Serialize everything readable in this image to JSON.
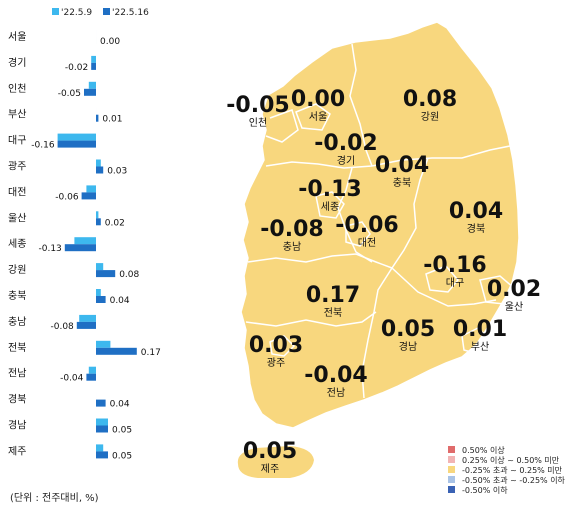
{
  "legend": {
    "series": [
      {
        "label": "'22.5.9",
        "color": "#3db8ee"
      },
      {
        "label": "'22.5.16",
        "color": "#1f6fc4"
      }
    ]
  },
  "unit_label": "(단위 : 전주대비, %)",
  "chart_data": {
    "type": "bar",
    "orientation": "horizontal",
    "categories": [
      "서울",
      "경기",
      "인천",
      "부산",
      "대구",
      "광주",
      "대전",
      "울산",
      "세종",
      "강원",
      "충북",
      "충남",
      "전북",
      "전남",
      "경북",
      "경남",
      "제주"
    ],
    "series": [
      {
        "name": "'22.5.9",
        "values": [
          0.0,
          -0.02,
          -0.03,
          0.0,
          -0.16,
          0.02,
          -0.04,
          0.01,
          -0.09,
          0.03,
          0.02,
          -0.07,
          0.06,
          -0.03,
          0.0,
          0.05,
          0.03
        ]
      },
      {
        "name": "'22.5.16",
        "values": [
          0.0,
          -0.02,
          -0.05,
          0.01,
          -0.16,
          0.03,
          -0.06,
          0.02,
          -0.13,
          0.08,
          0.04,
          -0.08,
          0.17,
          -0.04,
          0.04,
          0.05,
          0.05
        ]
      }
    ],
    "value_labels": [
      "0.00",
      "-0.02",
      "-0.05",
      "0.01",
      "-0.16",
      "0.03",
      "-0.06",
      "0.02",
      "-0.13",
      "0.08",
      "0.04",
      "-0.08",
      "0.17",
      "-0.04",
      "0.04",
      "0.05",
      "0.05"
    ],
    "legend_position": "top-left",
    "grid": false
  },
  "map": {
    "regions": [
      {
        "name": "인천",
        "value": "-0.05"
      },
      {
        "name": "서울",
        "value": "0.00"
      },
      {
        "name": "강원",
        "value": "0.08"
      },
      {
        "name": "경기",
        "value": "-0.02"
      },
      {
        "name": "충북",
        "value": "0.04"
      },
      {
        "name": "세종",
        "value": "-0.13"
      },
      {
        "name": "충남",
        "value": "-0.08"
      },
      {
        "name": "대전",
        "value": "-0.06"
      },
      {
        "name": "경북",
        "value": "0.04"
      },
      {
        "name": "대구",
        "value": "-0.16"
      },
      {
        "name": "울산",
        "value": "0.02"
      },
      {
        "name": "전북",
        "value": "0.17"
      },
      {
        "name": "경남",
        "value": "0.05"
      },
      {
        "name": "부산",
        "value": "0.01"
      },
      {
        "name": "광주",
        "value": "0.03"
      },
      {
        "name": "전남",
        "value": "-0.04"
      },
      {
        "name": "제주",
        "value": "0.05"
      }
    ],
    "fill_color": "#f8d77e",
    "legend": [
      {
        "label": "0.50% 이상",
        "color": "#e06b6b"
      },
      {
        "label": "0.25% 이상 ~ 0.50% 미만",
        "color": "#f2b4b4"
      },
      {
        "label": "-0.25% 초과 ~ 0.25% 미만",
        "color": "#f8d77e"
      },
      {
        "label": "-0.50% 초과 ~ -0.25% 이하",
        "color": "#a9c3e6"
      },
      {
        "label": "-0.50% 이하",
        "color": "#3a62b4"
      }
    ]
  }
}
